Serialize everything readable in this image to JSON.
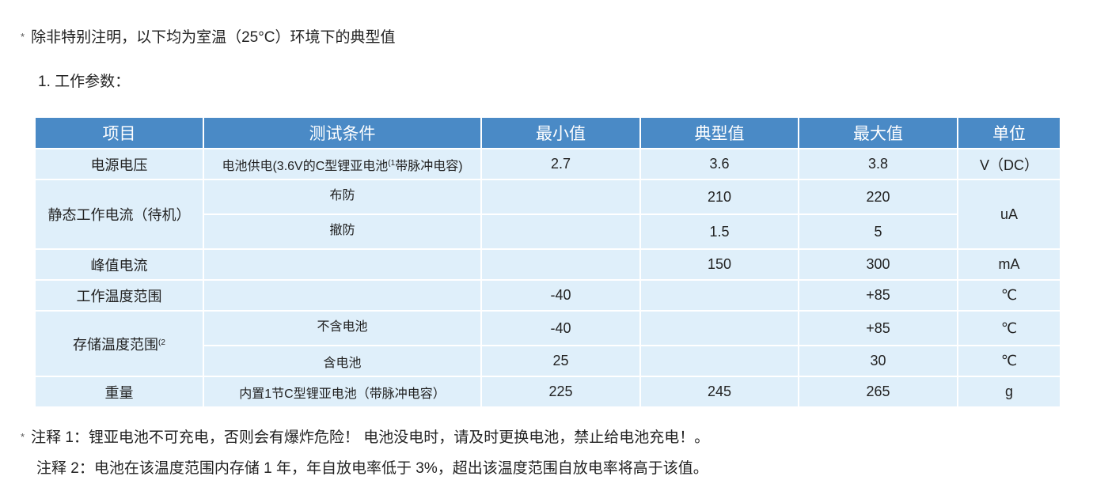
{
  "intro": {
    "marker": "*",
    "text": "除非特别注明，以下均为室温（25°C）环境下的典型值"
  },
  "section_title": "1. 工作参数：",
  "table": {
    "headers": [
      "项目",
      "测试条件",
      "最小值",
      "典型值",
      "最大值",
      "单位"
    ],
    "rows": {
      "supply": {
        "item": "电源电压",
        "cond": "电池供电(3.6V的C型锂亚电池",
        "cond_sup": "(1",
        "cond_tail": "带脉冲电容)",
        "min": "2.7",
        "typ": "3.6",
        "max": "3.8",
        "unit": "V（DC）"
      },
      "standby": {
        "item": "静态工作电流（待机）",
        "unit": "uA",
        "sub": [
          {
            "cond": "布防",
            "min": "",
            "typ": "210",
            "max": "220"
          },
          {
            "cond": "撤防",
            "min": "",
            "typ": "1.5",
            "max": "5"
          }
        ]
      },
      "peak": {
        "item": "峰值电流",
        "cond": "",
        "min": "",
        "typ": "150",
        "max": "300",
        "unit": "mA"
      },
      "optemp": {
        "item": "工作温度范围",
        "cond": "",
        "min": "-40",
        "typ": "",
        "max": "+85",
        "unit": "℃"
      },
      "storage": {
        "item": "存储温度范围",
        "item_sup": "(2",
        "sub": [
          {
            "cond": "不含电池",
            "min": "-40",
            "typ": "",
            "max": "+85",
            "unit": "℃"
          },
          {
            "cond": "含电池",
            "min": "25",
            "typ": "",
            "max": "30",
            "unit": "℃"
          }
        ]
      },
      "weight": {
        "item": "重量",
        "cond": "内置1节C型锂亚电池（带脉冲电容）",
        "min": "225",
        "typ": "245",
        "max": "265",
        "unit": "g"
      }
    }
  },
  "notes": [
    {
      "marker": "*",
      "text": "注释 1：锂亚电池不可充电，否则会有爆炸危险！ 电池没电时，请及时更换电池，禁止给电池充电！。"
    },
    {
      "text": "注释 2：电池在该温度范围内存储 1 年，年自放电率低于 3%，超出该温度范围自放电率将高于该值。"
    }
  ],
  "colors": {
    "header_bg": "#4a8ac6",
    "cell_bg": "#dfeffa"
  }
}
